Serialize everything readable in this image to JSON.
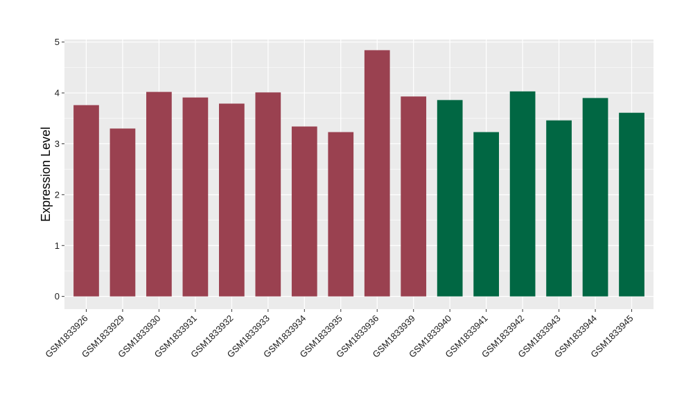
{
  "chart_data": {
    "type": "bar",
    "title": "",
    "xlabel": "",
    "ylabel": "Expression Level",
    "ylim": [
      -0.25,
      5.05
    ],
    "yticks": [
      0,
      1,
      2,
      3,
      4,
      5
    ],
    "grid": true,
    "legend": "none",
    "categories": [
      "GSM1833926",
      "GSM1833929",
      "GSM1833930",
      "GSM1833931",
      "GSM1833932",
      "GSM1833933",
      "GSM1833934",
      "GSM1833935",
      "GSM1833936",
      "GSM1833939",
      "GSM1833940",
      "GSM1833941",
      "GSM1833942",
      "GSM1833943",
      "GSM1833944",
      "GSM1833945"
    ],
    "values": [
      3.76,
      3.3,
      4.02,
      3.91,
      3.79,
      4.01,
      3.34,
      3.23,
      4.84,
      3.93,
      3.86,
      3.23,
      4.03,
      3.46,
      3.9,
      3.61
    ],
    "group_colors": [
      "#9a4150",
      "#9a4150",
      "#9a4150",
      "#9a4150",
      "#9a4150",
      "#9a4150",
      "#9a4150",
      "#9a4150",
      "#9a4150",
      "#9a4150",
      "#016743",
      "#016743",
      "#016743",
      "#016743",
      "#016743",
      "#016743"
    ],
    "panel_background": "#ebebeb",
    "grid_color": "#ffffff"
  }
}
